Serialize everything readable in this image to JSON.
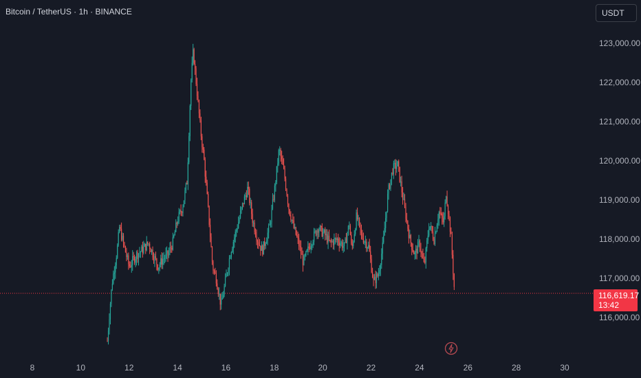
{
  "header": {
    "title": "Bitcoin / TetherUS · 1h · BINANCE",
    "currency_button": "USDT"
  },
  "colors": {
    "background": "#161a25",
    "up": "#26a69a",
    "down": "#ef5350",
    "axis_text": "#b2b5be",
    "current_price_line": "#f23645"
  },
  "current_price": {
    "value": "116,619.17",
    "countdown": "13:42"
  },
  "icons": {
    "event": "flash-icon"
  },
  "chart_data": {
    "type": "candlestick",
    "interval": "1h",
    "x_unit": "day of month",
    "xlim": [
      7,
      31.2
    ],
    "ylim": [
      115000,
      123700
    ],
    "x_ticks": [
      "8",
      "10",
      "12",
      "14",
      "16",
      "18",
      "20",
      "22",
      "24",
      "26",
      "28",
      "30"
    ],
    "y_ticks": [
      "116,000.00",
      "117,000.00",
      "118,000.00",
      "119,000.00",
      "120,000.00",
      "121,000.00",
      "122,000.00",
      "123,000.00"
    ],
    "approx_close_path": [
      [
        11.1,
        115400
      ],
      [
        11.2,
        116200
      ],
      [
        11.3,
        116900
      ],
      [
        11.5,
        117700
      ],
      [
        11.6,
        118300
      ],
      [
        11.8,
        117800
      ],
      [
        12.0,
        117300
      ],
      [
        12.3,
        117600
      ],
      [
        12.5,
        117700
      ],
      [
        12.8,
        117900
      ],
      [
        13.0,
        117600
      ],
      [
        13.2,
        117300
      ],
      [
        13.4,
        117500
      ],
      [
        13.6,
        117600
      ],
      [
        13.8,
        117900
      ],
      [
        14.0,
        118500
      ],
      [
        14.2,
        118800
      ],
      [
        14.4,
        119500
      ],
      [
        14.55,
        122000
      ],
      [
        14.65,
        122800
      ],
      [
        14.8,
        121800
      ],
      [
        14.95,
        120800
      ],
      [
        15.1,
        120000
      ],
      [
        15.3,
        118500
      ],
      [
        15.45,
        117300
      ],
      [
        15.6,
        117000
      ],
      [
        15.8,
        116300
      ],
      [
        16.0,
        117000
      ],
      [
        16.2,
        117700
      ],
      [
        16.5,
        118400
      ],
      [
        16.7,
        118900
      ],
      [
        16.9,
        119300
      ],
      [
        17.1,
        118500
      ],
      [
        17.3,
        118000
      ],
      [
        17.5,
        117700
      ],
      [
        17.8,
        118300
      ],
      [
        18.0,
        119200
      ],
      [
        18.2,
        120300
      ],
      [
        18.4,
        119700
      ],
      [
        18.6,
        118800
      ],
      [
        18.8,
        118300
      ],
      [
        19.0,
        117900
      ],
      [
        19.2,
        117400
      ],
      [
        19.5,
        117900
      ],
      [
        19.8,
        118300
      ],
      [
        20.1,
        118100
      ],
      [
        20.3,
        117900
      ],
      [
        20.6,
        118000
      ],
      [
        20.9,
        117800
      ],
      [
        21.1,
        118400
      ],
      [
        21.2,
        117700
      ],
      [
        21.4,
        118600
      ],
      [
        21.6,
        118100
      ],
      [
        21.9,
        117800
      ],
      [
        22.1,
        116900
      ],
      [
        22.3,
        117100
      ],
      [
        22.5,
        117900
      ],
      [
        22.7,
        119200
      ],
      [
        22.9,
        119800
      ],
      [
        23.1,
        119900
      ],
      [
        23.3,
        119100
      ],
      [
        23.6,
        118000
      ],
      [
        23.8,
        117600
      ],
      [
        24.0,
        117900
      ],
      [
        24.2,
        117300
      ],
      [
        24.4,
        118400
      ],
      [
        24.6,
        118000
      ],
      [
        24.8,
        118700
      ],
      [
        25.0,
        118400
      ],
      [
        25.1,
        119200
      ],
      [
        25.3,
        118100
      ],
      [
        25.45,
        116620
      ]
    ]
  }
}
